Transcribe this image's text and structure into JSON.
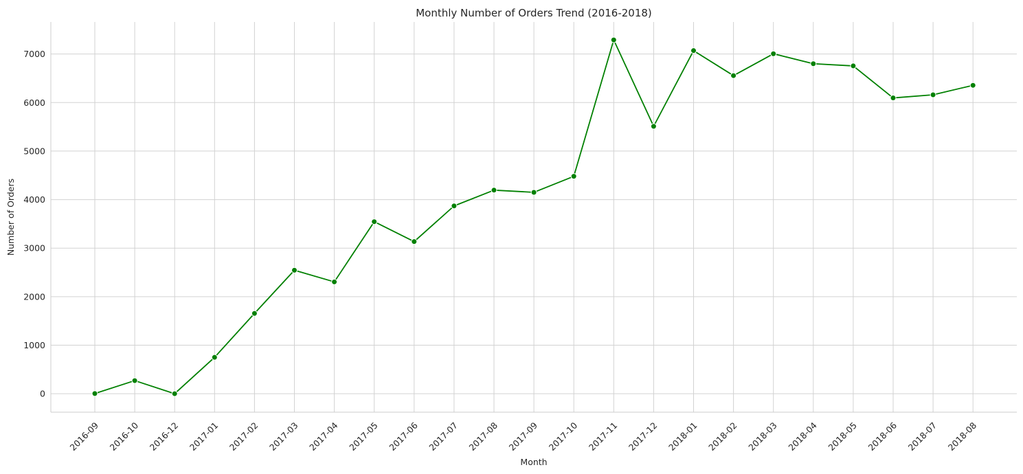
{
  "chart_data": {
    "type": "line",
    "title": "Monthly Number of Orders Trend (2016-2018)",
    "xlabel": "Month",
    "ylabel": "Number of Orders",
    "categories": [
      "2016-09",
      "2016-10",
      "2016-12",
      "2017-01",
      "2017-02",
      "2017-03",
      "2017-04",
      "2017-05",
      "2017-06",
      "2017-07",
      "2017-08",
      "2017-09",
      "2017-10",
      "2017-11",
      "2017-12",
      "2018-01",
      "2018-02",
      "2018-03",
      "2018-04",
      "2018-05",
      "2018-06",
      "2018-07",
      "2018-08"
    ],
    "series": [
      {
        "values": [
          4,
          270,
          1,
          750,
          1655,
          2545,
          2305,
          3545,
          3135,
          3870,
          4195,
          4150,
          4480,
          7290,
          5510,
          7070,
          6555,
          7005,
          6800,
          6755,
          6095,
          6160,
          6355
        ],
        "color": "#008000",
        "marker": "circle"
      }
    ],
    "yticks": [
      0,
      1000,
      2000,
      3000,
      4000,
      5000,
      6000,
      7000
    ],
    "ylim": [
      -380,
      7660
    ],
    "grid": true,
    "legend": "none",
    "spines": "left-bottom"
  }
}
